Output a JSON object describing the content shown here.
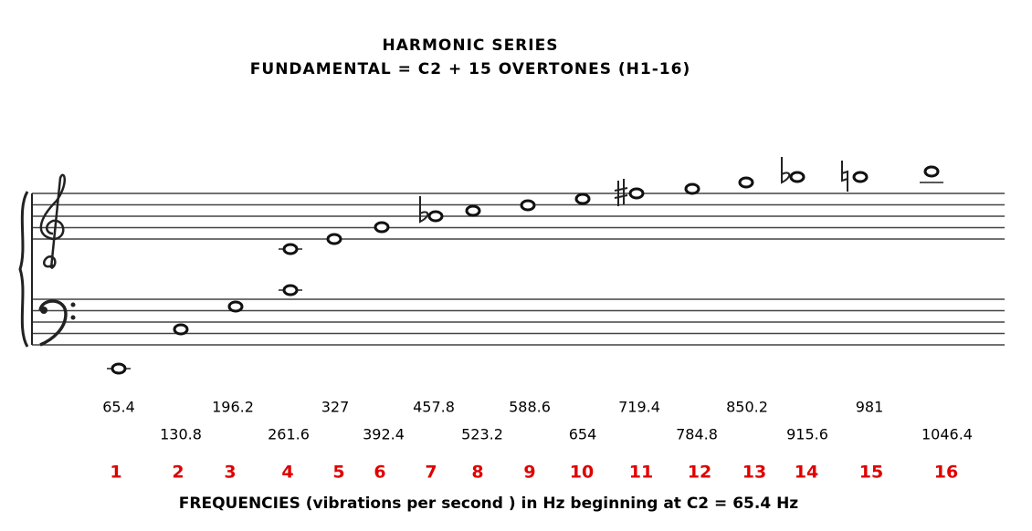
{
  "header": {
    "title": "HARMONIC SERIES",
    "subtitle": "FUNDAMENTAL = C2 + 15 OVERTONES (H1-16)"
  },
  "harmonics": [
    {
      "number": 1,
      "frequency": 65.4
    },
    {
      "number": 2,
      "frequency": 130.8
    },
    {
      "number": 3,
      "frequency": 196.2
    },
    {
      "number": 4,
      "frequency": 261.6
    },
    {
      "number": 5,
      "frequency": 327
    },
    {
      "number": 6,
      "frequency": 392.4
    },
    {
      "number": 7,
      "frequency": 457.8
    },
    {
      "number": 8,
      "frequency": 523.2
    },
    {
      "number": 9,
      "frequency": 588.6
    },
    {
      "number": 10,
      "frequency": 654
    },
    {
      "number": 11,
      "frequency": 719.4
    },
    {
      "number": 12,
      "frequency": 784.8
    },
    {
      "number": 13,
      "frequency": 850.2
    },
    {
      "number": 14,
      "frequency": 915.6
    },
    {
      "number": 15,
      "frequency": 981
    },
    {
      "number": 16,
      "frequency": 1046.4
    }
  ],
  "footer": "FREQUENCIES (vibrations per second ) in Hz beginning at C2 = 65.4 Hz"
}
